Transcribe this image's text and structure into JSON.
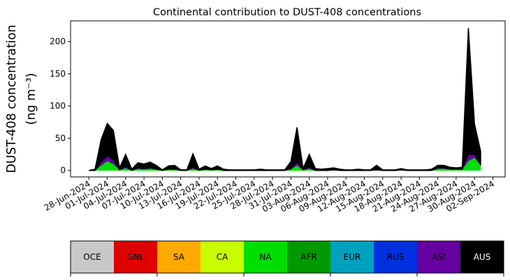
{
  "chart_data": {
    "type": "stacked-area",
    "title": "Continental contribution to DUST-408 concentrations",
    "ylabel": [
      "DUST-408 concentration",
      "(ng m⁻³)"
    ],
    "x": [
      "2024-06-28",
      "2024-06-29",
      "2024-06-30",
      "2024-07-01",
      "2024-07-02",
      "2024-07-03",
      "2024-07-04",
      "2024-07-05",
      "2024-07-06",
      "2024-07-07",
      "2024-07-08",
      "2024-07-09",
      "2024-07-10",
      "2024-07-11",
      "2024-07-12",
      "2024-07-13",
      "2024-07-14",
      "2024-07-15",
      "2024-07-16",
      "2024-07-17",
      "2024-07-18",
      "2024-07-19",
      "2024-07-20",
      "2024-07-21",
      "2024-07-22",
      "2024-07-23",
      "2024-07-24",
      "2024-07-25",
      "2024-07-26",
      "2024-07-27",
      "2024-07-28",
      "2024-07-29",
      "2024-07-30",
      "2024-07-31",
      "2024-08-01",
      "2024-08-02",
      "2024-08-03",
      "2024-08-04",
      "2024-08-05",
      "2024-08-06",
      "2024-08-07",
      "2024-08-08",
      "2024-08-09",
      "2024-08-10",
      "2024-08-11",
      "2024-08-12",
      "2024-08-13",
      "2024-08-14",
      "2024-08-15",
      "2024-08-16",
      "2024-08-17",
      "2024-08-18",
      "2024-08-19",
      "2024-08-20",
      "2024-08-21",
      "2024-08-22",
      "2024-08-23",
      "2024-08-24",
      "2024-08-25",
      "2024-08-26",
      "2024-08-27",
      "2024-08-28",
      "2024-08-29",
      "2024-08-30",
      "2024-08-31"
    ],
    "series": [
      {
        "name": "OCE",
        "color": "#c8c8c8",
        "values": [
          0,
          0,
          0,
          0,
          0,
          0,
          0,
          0,
          0,
          0,
          0,
          0,
          0,
          0,
          0,
          0,
          0,
          0,
          0,
          0,
          0,
          0,
          0,
          0,
          0,
          0,
          0,
          0,
          0,
          0,
          0,
          0,
          0,
          0,
          0,
          0,
          0,
          0,
          0,
          0,
          0,
          0,
          0,
          0,
          0,
          0,
          0,
          0,
          0,
          0,
          0,
          0,
          0,
          0,
          0,
          0,
          0,
          0,
          0,
          0,
          0,
          0,
          0,
          0,
          0
        ]
      },
      {
        "name": "GNL",
        "color": "#e00000",
        "values": [
          0,
          0,
          0,
          0,
          0,
          0,
          0,
          0,
          0,
          0,
          0,
          0,
          0,
          0,
          0,
          0,
          0,
          0,
          0,
          0,
          0,
          0,
          0,
          0,
          0,
          0,
          0,
          0,
          0,
          0,
          0,
          0,
          0,
          0,
          0,
          0,
          0,
          0,
          0,
          0,
          0,
          0,
          0,
          0,
          0,
          0,
          0,
          0,
          0,
          0,
          0,
          0,
          0,
          0,
          0,
          0,
          0,
          0,
          0,
          0,
          0,
          0,
          0,
          0,
          0
        ]
      },
      {
        "name": "SA",
        "color": "#ffaa00",
        "values": [
          0,
          0,
          0,
          0,
          0,
          0,
          0,
          0,
          0,
          0,
          0,
          0,
          0,
          0,
          0,
          0,
          0,
          0,
          0,
          0,
          0,
          0,
          0,
          0,
          0,
          0,
          0,
          0,
          0,
          0,
          0,
          0,
          0,
          0,
          0,
          0,
          0,
          0,
          0,
          0,
          0,
          0,
          0,
          0,
          0,
          0,
          0,
          0,
          0,
          0,
          0,
          0,
          0,
          0,
          0,
          0,
          0,
          0,
          0,
          0,
          0,
          0,
          0,
          0,
          0
        ]
      },
      {
        "name": "CA",
        "color": "#c8ff00",
        "values": [
          0,
          0,
          0,
          0,
          0,
          0,
          0,
          0,
          0,
          0,
          0,
          0,
          0,
          0,
          0,
          0,
          0,
          0,
          0,
          0,
          0,
          0,
          0,
          0,
          0,
          0,
          0,
          0,
          0,
          0,
          0,
          0,
          0,
          0,
          0,
          0,
          0,
          0,
          0,
          0,
          0,
          0,
          0,
          0,
          0,
          0,
          0,
          0,
          0,
          0,
          0,
          0,
          0,
          0,
          0,
          0,
          0,
          0,
          0,
          0,
          0,
          0,
          0,
          0,
          0
        ]
      },
      {
        "name": "NA",
        "color": "#00dd00",
        "values": [
          0,
          0,
          8,
          15,
          10,
          1,
          4,
          0,
          3,
          2,
          3,
          2,
          0,
          2,
          2,
          0,
          0,
          3,
          0,
          2,
          1,
          2,
          0,
          0,
          0,
          0,
          0,
          0,
          0,
          0,
          0,
          0,
          0,
          2,
          8,
          1,
          3,
          0,
          0,
          0,
          1,
          0,
          0,
          0,
          0,
          0,
          0,
          1,
          0,
          0,
          0,
          1,
          0,
          0,
          0,
          0,
          0,
          3,
          3,
          2,
          2,
          2,
          15,
          20,
          8
        ]
      },
      {
        "name": "AFR",
        "color": "#009900",
        "values": [
          0,
          0,
          0,
          0,
          0,
          0,
          0,
          0,
          0,
          0,
          0,
          0,
          0,
          0,
          0,
          0,
          0,
          0,
          0,
          0,
          0,
          0,
          0,
          0,
          0,
          0,
          0,
          0,
          0,
          0,
          0,
          0,
          0,
          0,
          0,
          0,
          0,
          0,
          0,
          0,
          0,
          0,
          0,
          0,
          0,
          0,
          0,
          0,
          0,
          0,
          0,
          0,
          0,
          0,
          0,
          0,
          0,
          0,
          0,
          0,
          0,
          0,
          0,
          0,
          0
        ]
      },
      {
        "name": "EUR",
        "color": "#00a0c0",
        "values": [
          0,
          0,
          0,
          0,
          0,
          0,
          0,
          0,
          0,
          0,
          0,
          0,
          0,
          0,
          0,
          0,
          0,
          0,
          0,
          0,
          0,
          0,
          0,
          0,
          0,
          0,
          0,
          0,
          0,
          0,
          0,
          0,
          0,
          0,
          0,
          0,
          0,
          0,
          0,
          0,
          0,
          0,
          0,
          0,
          0,
          0,
          0,
          0,
          0,
          0,
          0,
          0,
          0,
          0,
          0,
          0,
          0,
          0,
          0,
          0,
          0,
          0,
          0,
          0,
          0
        ]
      },
      {
        "name": "RUS",
        "color": "#0030e0",
        "values": [
          0,
          0,
          0,
          0,
          0,
          0,
          0,
          0,
          0,
          0,
          0,
          0,
          0,
          0,
          0,
          0,
          0,
          0,
          0,
          0,
          0,
          0,
          0,
          0,
          0,
          0,
          0,
          0,
          0,
          0,
          0,
          0,
          0,
          0,
          0,
          0,
          0,
          0,
          0,
          0,
          0,
          0,
          0,
          0,
          0,
          0,
          0,
          0,
          0,
          0,
          0,
          0,
          0,
          0,
          0,
          0,
          0,
          0,
          0,
          0,
          0,
          0,
          0,
          0,
          0
        ]
      },
      {
        "name": "ASI",
        "color": "#6600a0",
        "values": [
          0,
          0,
          5,
          8,
          6,
          0,
          2,
          0,
          1,
          1,
          1,
          0,
          0,
          0,
          0,
          0,
          0,
          2,
          0,
          0,
          0,
          0,
          0,
          0,
          0,
          0,
          0,
          0,
          0,
          0,
          0,
          0,
          0,
          1,
          5,
          0,
          2,
          0,
          0,
          0,
          0,
          0,
          0,
          0,
          0,
          0,
          0,
          0,
          0,
          0,
          0,
          0,
          0,
          0,
          0,
          0,
          0,
          1,
          1,
          0,
          0,
          0,
          10,
          5,
          2
        ]
      },
      {
        "name": "AUS",
        "color": "#000000",
        "values": [
          0,
          2,
          35,
          50,
          46,
          3,
          19,
          2,
          8,
          7,
          9,
          6,
          1,
          5,
          6,
          1,
          1,
          21,
          2,
          5,
          2,
          5,
          2,
          1,
          1,
          1,
          1,
          1,
          2,
          1,
          1,
          1,
          1,
          11,
          54,
          2,
          20,
          3,
          2,
          3,
          3,
          2,
          1,
          1,
          2,
          1,
          1,
          7,
          1,
          1,
          1,
          2,
          1,
          1,
          1,
          1,
          2,
          4,
          4,
          3,
          2,
          3,
          196,
          47,
          20
        ]
      }
    ],
    "xlim": [
      "2024-06-25",
      "2024-09-04"
    ],
    "xticks": [
      {
        "value": "2024-06-28",
        "label": "28-Jun-2024"
      },
      {
        "value": "2024-07-01",
        "label": "01-Jul-2024"
      },
      {
        "value": "2024-07-04",
        "label": "04-Jul-2024"
      },
      {
        "value": "2024-07-07",
        "label": "07-Jul-2024"
      },
      {
        "value": "2024-07-10",
        "label": "10-Jul-2024"
      },
      {
        "value": "2024-07-13",
        "label": "13-Jul-2024"
      },
      {
        "value": "2024-07-16",
        "label": "16-Jul-2024"
      },
      {
        "value": "2024-07-19",
        "label": "19-Jul-2024"
      },
      {
        "value": "2024-07-22",
        "label": "22-Jul-2024"
      },
      {
        "value": "2024-07-25",
        "label": "25-Jul-2024"
      },
      {
        "value": "2024-07-28",
        "label": "28-Jul-2024"
      },
      {
        "value": "2024-07-31",
        "label": "31-Jul-2024"
      },
      {
        "value": "2024-08-03",
        "label": "03-Aug-2024"
      },
      {
        "value": "2024-08-06",
        "label": "06-Aug-2024"
      },
      {
        "value": "2024-08-09",
        "label": "09-Aug-2024"
      },
      {
        "value": "2024-08-12",
        "label": "12-Aug-2024"
      },
      {
        "value": "2024-08-15",
        "label": "15-Aug-2024"
      },
      {
        "value": "2024-08-18",
        "label": "18-Aug-2024"
      },
      {
        "value": "2024-08-21",
        "label": "21-Aug-2024"
      },
      {
        "value": "2024-08-24",
        "label": "24-Aug-2024"
      },
      {
        "value": "2024-08-27",
        "label": "27-Aug-2024"
      },
      {
        "value": "2024-08-30",
        "label": "30-Aug-2024"
      },
      {
        "value": "2024-09-02",
        "label": "02-Sep-2024"
      }
    ],
    "ylim": [
      -10,
      232
    ],
    "yticks": [
      0,
      50,
      100,
      150,
      200
    ]
  }
}
